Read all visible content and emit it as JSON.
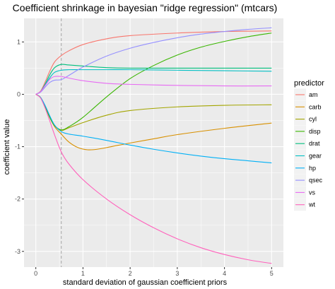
{
  "chart_data": {
    "type": "line",
    "title": "Coefficient shrinkage in bayesian \"ridge regression\" (mtcars)",
    "xlabel": "standard deviation of gaussian coefficient priors",
    "ylabel": "coefficient value",
    "xlim": [
      -0.25,
      5.25
    ],
    "ylim": [
      -3.3,
      1.45
    ],
    "x_ticks": [
      0,
      1,
      2,
      3,
      4,
      5
    ],
    "y_ticks": [
      -3,
      -2,
      -1,
      0,
      1
    ],
    "grid": true,
    "background": "#EBEBEB",
    "reference_line": {
      "x": 0.54,
      "style": "dashed",
      "color": "#A6A6A6"
    },
    "legend": {
      "title": "predictor",
      "placement": "right"
    },
    "series": [
      {
        "name": "am",
        "color": "#F8766D",
        "x": [
          0,
          0.1,
          0.2,
          0.3,
          0.4,
          0.54,
          0.7,
          1.0,
          1.5,
          2.0,
          3.0,
          4.0,
          5.0
        ],
        "y": [
          0,
          0.06,
          0.24,
          0.45,
          0.62,
          0.74,
          0.83,
          0.95,
          1.06,
          1.12,
          1.17,
          1.2,
          1.21
        ]
      },
      {
        "name": "carb",
        "color": "#D89000",
        "x": [
          0,
          0.1,
          0.2,
          0.3,
          0.4,
          0.54,
          0.7,
          0.9,
          1.1,
          1.3,
          1.6,
          2.0,
          2.5,
          3.0,
          4.0,
          5.0
        ],
        "y": [
          0,
          -0.06,
          -0.24,
          -0.45,
          -0.62,
          -0.76,
          -0.91,
          -1.02,
          -1.06,
          -1.05,
          -1.0,
          -0.93,
          -0.85,
          -0.77,
          -0.65,
          -0.55
        ]
      },
      {
        "name": "cyl",
        "color": "#A3A500",
        "x": [
          0,
          0.1,
          0.2,
          0.3,
          0.4,
          0.54,
          0.7,
          1.0,
          1.5,
          2.0,
          3.0,
          4.0,
          5.0
        ],
        "y": [
          0,
          -0.06,
          -0.24,
          -0.44,
          -0.6,
          -0.69,
          -0.64,
          -0.54,
          -0.4,
          -0.31,
          -0.24,
          -0.21,
          -0.2
        ]
      },
      {
        "name": "disp",
        "color": "#39B600",
        "x": [
          0,
          0.1,
          0.2,
          0.3,
          0.4,
          0.54,
          0.7,
          1.0,
          1.5,
          2.0,
          2.5,
          3.0,
          3.5,
          4.0,
          4.5,
          5.0
        ],
        "y": [
          0,
          -0.06,
          -0.24,
          -0.45,
          -0.6,
          -0.68,
          -0.62,
          -0.44,
          -0.05,
          0.3,
          0.55,
          0.75,
          0.9,
          1.01,
          1.1,
          1.17
        ]
      },
      {
        "name": "drat",
        "color": "#00BF7D",
        "x": [
          0,
          0.1,
          0.2,
          0.3,
          0.4,
          0.54,
          0.7,
          1.0,
          1.5,
          2.0,
          3.0,
          4.0,
          5.0
        ],
        "y": [
          0,
          0.05,
          0.2,
          0.38,
          0.51,
          0.57,
          0.56,
          0.54,
          0.51,
          0.5,
          0.5,
          0.5,
          0.5
        ]
      },
      {
        "name": "gear",
        "color": "#00BFC4",
        "x": [
          0,
          0.1,
          0.2,
          0.3,
          0.4,
          0.54,
          0.7,
          1.0,
          1.5,
          2.0,
          3.0,
          4.0,
          5.0
        ],
        "y": [
          0,
          0.05,
          0.18,
          0.32,
          0.42,
          0.46,
          0.47,
          0.47,
          0.47,
          0.47,
          0.46,
          0.45,
          0.44
        ]
      },
      {
        "name": "hp",
        "color": "#00B0F6",
        "x": [
          0,
          0.1,
          0.2,
          0.3,
          0.4,
          0.54,
          0.7,
          1.0,
          1.5,
          2.0,
          2.5,
          3.0,
          3.5,
          4.0,
          4.5,
          5.0
        ],
        "y": [
          0,
          -0.06,
          -0.22,
          -0.42,
          -0.59,
          -0.71,
          -0.76,
          -0.8,
          -0.88,
          -0.97,
          -1.05,
          -1.12,
          -1.18,
          -1.23,
          -1.27,
          -1.31
        ]
      },
      {
        "name": "qsec",
        "color": "#9590FF",
        "x": [
          0,
          0.1,
          0.2,
          0.3,
          0.4,
          0.54,
          0.7,
          1.0,
          1.5,
          2.0,
          2.5,
          3.0,
          3.5,
          4.0,
          4.5,
          5.0
        ],
        "y": [
          0,
          0.04,
          0.14,
          0.23,
          0.27,
          0.28,
          0.36,
          0.52,
          0.73,
          0.88,
          0.99,
          1.08,
          1.15,
          1.2,
          1.24,
          1.27
        ]
      },
      {
        "name": "vs",
        "color": "#E76BF3",
        "x": [
          0,
          0.1,
          0.2,
          0.3,
          0.4,
          0.54,
          0.7,
          1.0,
          1.5,
          2.0,
          3.0,
          4.0,
          5.0
        ],
        "y": [
          0,
          0.05,
          0.17,
          0.29,
          0.34,
          0.34,
          0.31,
          0.26,
          0.21,
          0.19,
          0.17,
          0.16,
          0.16
        ]
      },
      {
        "name": "wt",
        "color": "#FF62BC",
        "x": [
          0,
          0.1,
          0.2,
          0.3,
          0.4,
          0.54,
          0.7,
          1.0,
          1.5,
          2.0,
          2.5,
          3.0,
          3.5,
          4.0,
          4.5,
          5.0
        ],
        "y": [
          0,
          -0.07,
          -0.27,
          -0.52,
          -0.78,
          -1.1,
          -1.33,
          -1.63,
          -2.0,
          -2.3,
          -2.55,
          -2.76,
          -2.93,
          -3.06,
          -3.16,
          -3.23
        ]
      }
    ]
  }
}
